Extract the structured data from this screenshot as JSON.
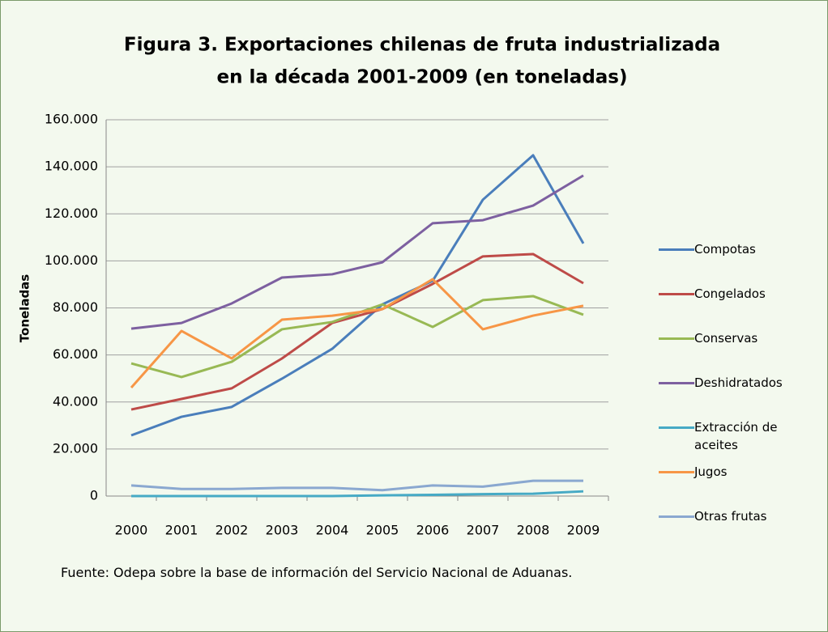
{
  "chart_data": {
    "type": "line",
    "title": [
      "Figura 3. Exportaciones chilenas de fruta industrializada",
      "en la década 2001-2009  (en toneladas)"
    ],
    "y_label": "Toneladas",
    "source": "Fuente: Odepa sobre la base de información del Servicio Nacional de Aduanas.",
    "categories": [
      "2000",
      "2001",
      "2002",
      "2003",
      "2004",
      "2005",
      "2006",
      "2007",
      "2008",
      "2009"
    ],
    "series": [
      {
        "name": "Compotas",
        "color": "#4a7ebb",
        "values": [
          25800,
          33700,
          37900,
          49900,
          62600,
          81500,
          91500,
          126000,
          144900,
          107400
        ]
      },
      {
        "name": "Congelados",
        "color": "#be4b48",
        "values": [
          36800,
          41300,
          45800,
          58500,
          73600,
          79500,
          90200,
          101900,
          102900,
          90500
        ]
      },
      {
        "name": "Conservas",
        "color": "#98b954",
        "values": [
          56400,
          50600,
          57100,
          70900,
          74000,
          81500,
          71900,
          83300,
          85000,
          77100
        ]
      },
      {
        "name": "Deshidratados",
        "color": "#7d60a0",
        "values": [
          71200,
          73600,
          81900,
          92900,
          94300,
          99400,
          116000,
          117300,
          123500,
          136300
        ]
      },
      {
        "name": "Extracción de aceites",
        "color": "#46aac5",
        "values": [
          0,
          0,
          0,
          0,
          0,
          300,
          500,
          800,
          1000,
          2000
        ]
      },
      {
        "name": "Jugos",
        "color": "#f79646",
        "values": [
          46100,
          70200,
          58500,
          75000,
          76700,
          79500,
          92200,
          70900,
          76700,
          80900
        ]
      },
      {
        "name": "Otras frutas",
        "color": "#8aa8d0",
        "values": [
          4500,
          3000,
          3000,
          3500,
          3500,
          2500,
          4500,
          4000,
          6500,
          6500
        ]
      }
    ],
    "ylim": [
      0,
      160000
    ],
    "yticks": [
      0,
      {
        "value": 20000,
        "label": "20.000"
      },
      {
        "value": 40000,
        "label": "40.000"
      },
      {
        "value": 60000,
        "label": "60.000"
      },
      {
        "value": 80000,
        "label": "80.000"
      },
      {
        "value": 100000,
        "label": "100.000"
      },
      {
        "value": 120000,
        "label": "120.000"
      },
      {
        "value": 140000,
        "label": "140.000"
      },
      {
        "value": 160000,
        "label": "160.000"
      }
    ],
    "grid": true,
    "legend": "right"
  }
}
